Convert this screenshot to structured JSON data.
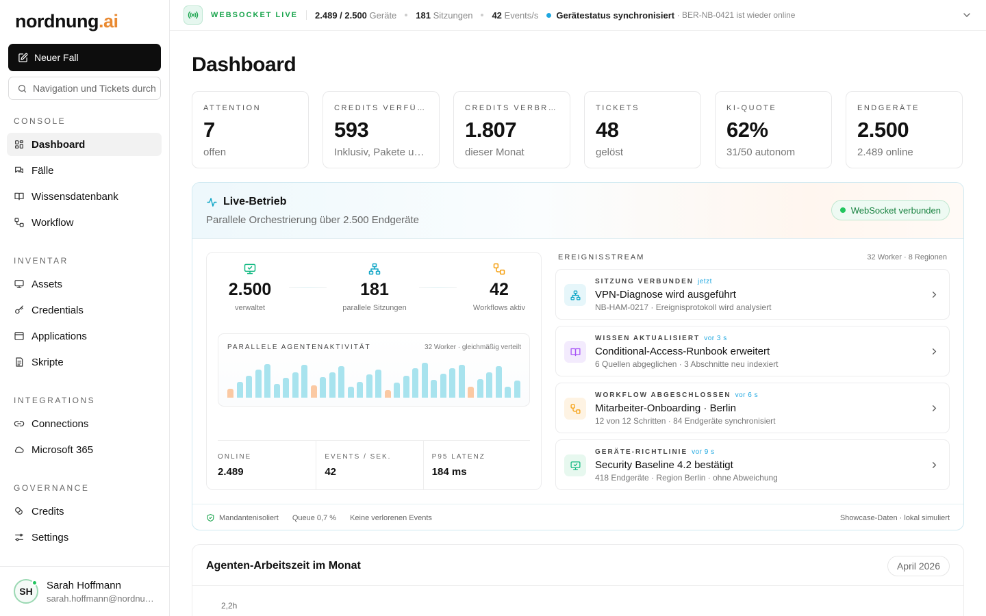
{
  "brand": {
    "name": "nordnung",
    "suffix": ".ai"
  },
  "sidebar": {
    "new_case_label": "Neuer Fall",
    "search_placeholder": "Navigation und Tickets durchsuchen",
    "sections": [
      {
        "title": "CONSOLE",
        "items": [
          {
            "label": "Dashboard",
            "icon": "grid-icon",
            "active": true
          },
          {
            "label": "Fälle",
            "icon": "chat-icon"
          },
          {
            "label": "Wissensdatenbank",
            "icon": "book-icon"
          },
          {
            "label": "Workflow",
            "icon": "workflow-icon"
          }
        ]
      },
      {
        "title": "INVENTAR",
        "items": [
          {
            "label": "Assets",
            "icon": "device-icon"
          },
          {
            "label": "Credentials",
            "icon": "key-icon"
          },
          {
            "label": "Applications",
            "icon": "window-icon"
          },
          {
            "label": "Skripte",
            "icon": "script-icon"
          }
        ]
      },
      {
        "title": "INTEGRATIONS",
        "items": [
          {
            "label": "Connections",
            "icon": "link-icon"
          },
          {
            "label": "Microsoft 365",
            "icon": "cloud-icon"
          }
        ]
      },
      {
        "title": "GOVERNANCE",
        "items": [
          {
            "label": "Credits",
            "icon": "coins-icon"
          },
          {
            "label": "Settings",
            "icon": "sliders-icon"
          }
        ]
      }
    ],
    "user": {
      "initials": "SH",
      "name": "Sarah Hoffmann",
      "email": "sarah.hoffmann@nordnung.ai"
    }
  },
  "topbar": {
    "live_label": "WEBSOCKET LIVE",
    "devices_value": "2.489 / 2.500",
    "devices_label": "Geräte",
    "sessions_value": "181",
    "sessions_label": "Sitzungen",
    "events_value": "42",
    "events_label": "Events/s",
    "status_text": "Gerätestatus synchronisiert",
    "status_detail": "· BER-NB-0421 ist wieder online"
  },
  "page": {
    "title": "Dashboard"
  },
  "kpis": [
    {
      "label": "ATTENTION",
      "value": "7",
      "sub": "offen"
    },
    {
      "label": "CREDITS VERFÜGBAR",
      "value": "593",
      "sub": "Inklusiv, Pakete und Guthaben"
    },
    {
      "label": "CREDITS VERBRAUCHT",
      "value": "1.807",
      "sub": "dieser Monat"
    },
    {
      "label": "TICKETS",
      "value": "48",
      "sub": "gelöst"
    },
    {
      "label": "KI-QUOTE",
      "value": "62%",
      "sub": "31/50 autonom"
    },
    {
      "label": "ENDGERÄTE",
      "value": "2.500",
      "sub": "2.489 online"
    }
  ],
  "live": {
    "title": "Live-Betrieb",
    "subtitle": "Parallele Orchestrierung über 2.500 Endgeräte",
    "ws_status": "WebSocket verbunden",
    "orchestration": [
      {
        "value": "2.500",
        "label": "verwaltet",
        "icon": "monitor-icon",
        "color": "#10b981"
      },
      {
        "value": "181",
        "label": "parallele Sitzungen",
        "icon": "network-icon",
        "color": "#0ea5c6"
      },
      {
        "value": "42",
        "label": "Workflows aktiv",
        "icon": "workflow-icon",
        "color": "#f59e0b"
      }
    ],
    "agent_activity": {
      "title": "PARALLELE AGENTENAKTIVITÄT",
      "meta": "32 Worker · gleichmäßig verteilt",
      "bars": [
        0.25,
        0.45,
        0.62,
        0.78,
        0.95,
        0.38,
        0.55,
        0.72,
        0.92,
        0.35,
        0.58,
        0.72,
        0.88,
        0.3,
        0.45,
        0.65,
        0.78,
        0.22,
        0.42,
        0.62,
        0.82,
        0.98,
        0.5,
        0.68,
        0.82,
        0.92,
        0.3,
        0.52,
        0.72,
        0.88,
        0.3,
        0.48
      ],
      "highlight": [
        0,
        9,
        17,
        26
      ],
      "bar_color": "#a8e3ee",
      "highlight_color": "#fbc9a3"
    },
    "stats": [
      {
        "label": "ONLINE",
        "value": "2.489"
      },
      {
        "label": "EVENTS / SEK.",
        "value": "42"
      },
      {
        "label": "P95 LATENZ",
        "value": "184 ms"
      }
    ],
    "stream": {
      "title": "EREIGNISSTREAM",
      "meta": "32 Worker · 8 Regionen",
      "events": [
        {
          "kind": "SITZUNG VERBUNDEN",
          "time": "jetzt",
          "title": "VPN-Diagnose wird ausgeführt",
          "sub": "NB-HAM-0217 · Ereignisprotokoll wird analysiert",
          "icon": "network-icon",
          "color": "#0ea5c6",
          "bg": "#e6f6fa"
        },
        {
          "kind": "WISSEN AKTUALISIERT",
          "time": "vor 3 s",
          "title": "Conditional-Access-Runbook erweitert",
          "sub": "6 Quellen abgeglichen · 3 Abschnitte neu indexiert",
          "icon": "book-icon",
          "color": "#a855f7",
          "bg": "#f3ebfd"
        },
        {
          "kind": "WORKFLOW ABGESCHLOSSEN",
          "time": "vor 6 s",
          "title": "Mitarbeiter-Onboarding · Berlin",
          "sub": "12 von 12 Schritten · 84 Endgeräte synchronisiert",
          "icon": "workflow-icon",
          "color": "#f59e0b",
          "bg": "#fef3e3"
        },
        {
          "kind": "GERÄTE-RICHTLINIE",
          "time": "vor 9 s",
          "title": "Security Baseline 4.2 bestätigt",
          "sub": "418 Endgeräte · Region Berlin · ohne Abweichung",
          "icon": "monitor-check-icon",
          "color": "#10b981",
          "bg": "#e7f8ef"
        }
      ]
    },
    "footer": {
      "items": [
        "Mandantenisoliert",
        "Queue 0,7 %",
        "Keine verlorenen Events"
      ],
      "right": "Showcase-Daten · lokal simuliert"
    }
  },
  "work": {
    "title": "Agenten-Arbeitszeit im Monat",
    "month": "April 2026",
    "ytick": "2,2h"
  }
}
